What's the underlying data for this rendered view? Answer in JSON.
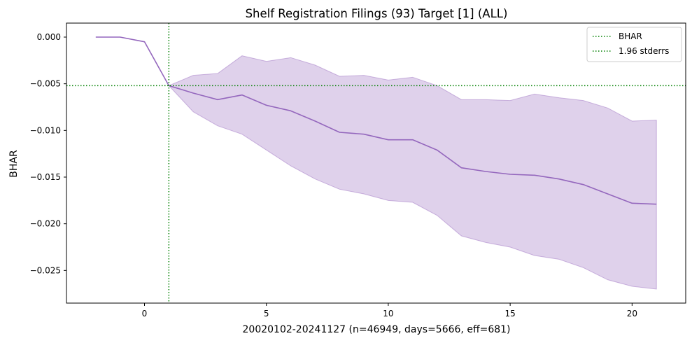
{
  "chart_data": {
    "type": "line",
    "title": "Shelf Registration Filings (93) Target [1] (ALL)",
    "xlabel": "20020102-20241127 (n=46949, days=5666, eff=681)",
    "ylabel": "BHAR",
    "xlim": [
      -3.2,
      22.2
    ],
    "ylim": [
      -0.0285,
      0.0015
    ],
    "xticks": [
      0,
      5,
      10,
      15,
      20
    ],
    "yticks": [
      0.0,
      -0.005,
      -0.01,
      -0.015,
      -0.02,
      -0.025
    ],
    "ytick_labels": [
      "0.000",
      "−0.005",
      "−0.010",
      "−0.015",
      "−0.020",
      "−0.025"
    ],
    "grid": false,
    "legend_position": "top-right",
    "series": [
      {
        "x": [
          -2,
          -1,
          0,
          1,
          2,
          3,
          4,
          5,
          6,
          7,
          8,
          9,
          10,
          11,
          12,
          13,
          14,
          15,
          16,
          17,
          18,
          19,
          20,
          21
        ],
        "values": [
          0.0,
          0.0,
          -0.0005,
          -0.0052,
          -0.006,
          -0.0067,
          -0.0062,
          -0.0073,
          -0.0079,
          -0.009,
          -0.0102,
          -0.0104,
          -0.011,
          -0.011,
          -0.0121,
          -0.014,
          -0.0144,
          -0.0147,
          -0.0148,
          -0.0152,
          -0.0158,
          -0.0168,
          -0.0178,
          -0.0179
        ],
        "color": "#9467bd"
      }
    ],
    "band": {
      "x": [
        1,
        2,
        3,
        4,
        5,
        6,
        7,
        8,
        9,
        10,
        11,
        12,
        13,
        14,
        15,
        16,
        17,
        18,
        19,
        20,
        21
      ],
      "upper": [
        -0.0052,
        -0.0041,
        -0.0039,
        -0.002,
        -0.0026,
        -0.0022,
        -0.003,
        -0.0042,
        -0.0041,
        -0.0046,
        -0.0043,
        -0.0052,
        -0.0067,
        -0.0067,
        -0.0068,
        -0.0061,
        -0.0065,
        -0.0068,
        -0.0076,
        -0.009,
        -0.0089
      ],
      "lower": [
        -0.0052,
        -0.008,
        -0.0095,
        -0.0104,
        -0.0121,
        -0.0138,
        -0.0152,
        -0.0163,
        -0.0168,
        -0.0175,
        -0.0177,
        -0.0191,
        -0.0213,
        -0.022,
        -0.0225,
        -0.0234,
        -0.0238,
        -0.0247,
        -0.026,
        -0.0267,
        -0.027
      ],
      "color": "#9467bd",
      "opacity": 0.3
    },
    "reference_lines": {
      "vertical_x": 1,
      "horizontal_y": -0.0052,
      "color": "#008000"
    },
    "legend": [
      {
        "label": "BHAR",
        "style": "dotted",
        "color": "#008000"
      },
      {
        "label": "1.96 stderrs",
        "style": "dotted",
        "color": "#008000"
      }
    ]
  }
}
